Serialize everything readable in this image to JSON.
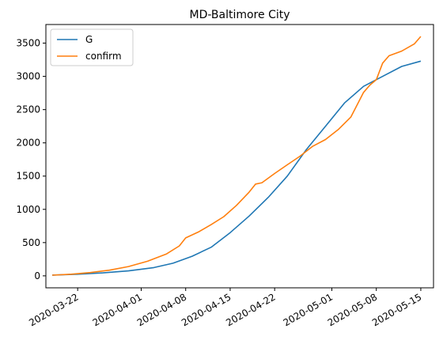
{
  "chart_data": {
    "type": "line",
    "title": "MD-Baltimore City",
    "xlabel": "",
    "ylabel": "",
    "x_axis_type": "date",
    "xlim": [
      "2020-03-17",
      "2020-05-17"
    ],
    "ylim": [
      -180,
      3780
    ],
    "x_ticks": [
      "2020-03-22",
      "2020-04-01",
      "2020-04-08",
      "2020-04-15",
      "2020-04-22",
      "2020-05-01",
      "2020-05-08",
      "2020-05-15"
    ],
    "y_ticks": [
      0,
      500,
      1000,
      1500,
      2000,
      2500,
      3000,
      3500
    ],
    "grid": false,
    "legend_position": "upper-left",
    "series": [
      {
        "name": "G",
        "color": "#1f77b4",
        "x": [
          "2020-03-18",
          "2020-03-22",
          "2020-03-26",
          "2020-03-30",
          "2020-04-03",
          "2020-04-06",
          "2020-04-09",
          "2020-04-12",
          "2020-04-15",
          "2020-04-18",
          "2020-04-21",
          "2020-04-24",
          "2020-04-27",
          "2020-04-30",
          "2020-05-03",
          "2020-05-06",
          "2020-05-09",
          "2020-05-12",
          "2020-05-15"
        ],
        "values": [
          12,
          25,
          45,
          75,
          125,
          190,
          295,
          430,
          650,
          900,
          1180,
          1500,
          1900,
          2250,
          2600,
          2850,
          3000,
          3150,
          3230
        ]
      },
      {
        "name": "confirm",
        "color": "#ff7f0e",
        "x": [
          "2020-03-18",
          "2020-03-21",
          "2020-03-24",
          "2020-03-27",
          "2020-03-30",
          "2020-04-02",
          "2020-04-05",
          "2020-04-07",
          "2020-04-08",
          "2020-04-10",
          "2020-04-12",
          "2020-04-14",
          "2020-04-16",
          "2020-04-18",
          "2020-04-19",
          "2020-04-20",
          "2020-04-22",
          "2020-04-24",
          "2020-04-26",
          "2020-04-28",
          "2020-04-30",
          "2020-05-02",
          "2020-05-04",
          "2020-05-06",
          "2020-05-07",
          "2020-05-08",
          "2020-05-09",
          "2020-05-10",
          "2020-05-12",
          "2020-05-14",
          "2020-05-15"
        ],
        "values": [
          10,
          25,
          50,
          85,
          140,
          220,
          330,
          450,
          570,
          660,
          770,
          890,
          1060,
          1260,
          1380,
          1400,
          1540,
          1670,
          1800,
          1950,
          2050,
          2200,
          2390,
          2760,
          2870,
          2950,
          3200,
          3310,
          3380,
          3490,
          3600
        ]
      }
    ]
  }
}
